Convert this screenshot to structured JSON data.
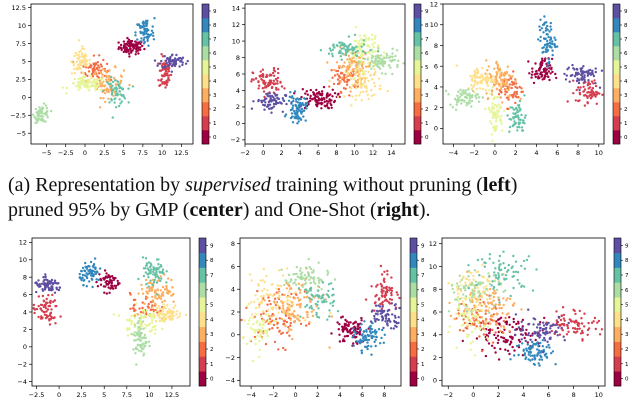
{
  "caption": {
    "p1": "(a) Representation by ",
    "p2": "supervised",
    "p3": " training without pruning (",
    "p4": "left",
    "p5": ")",
    "p6": "pruned 95% by GMP (",
    "p7": "center",
    "p8": ") and One-Shot (",
    "p9": "right",
    "p10": ")."
  },
  "colorbar": {
    "labels": [
      "0",
      "1",
      "2",
      "3",
      "4",
      "5",
      "6",
      "7",
      "8",
      "9"
    ],
    "colors": [
      "#9e0142",
      "#d53e4f",
      "#f46d43",
      "#fdae61",
      "#fee08b",
      "#e6f598",
      "#abdda4",
      "#66c2a5",
      "#3288bd",
      "#5e4fa2"
    ]
  },
  "chart_data": [
    {
      "type": "scatter",
      "title": "",
      "xlim": [
        -7,
        14
      ],
      "ylim": [
        -6.5,
        13
      ],
      "xticks": [
        -5,
        -2.5,
        0,
        2.5,
        5,
        7.5,
        10,
        12.5
      ],
      "yticks": [
        -5,
        -2.5,
        0,
        2.5,
        5,
        7.5,
        10,
        12.5
      ],
      "clusters": [
        {
          "label": 0,
          "x": 6.0,
          "y": 7.0,
          "sx": 0.8,
          "sy": 0.5,
          "n": 90
        },
        {
          "label": 1,
          "x": 10.4,
          "y": 3.4,
          "sx": 0.4,
          "sy": 1.2,
          "n": 70
        },
        {
          "label": 2,
          "x": 1.2,
          "y": 4.0,
          "sx": 0.8,
          "sy": 0.8,
          "n": 60
        },
        {
          "label": 3,
          "x": 3.0,
          "y": 2.0,
          "sx": 1.0,
          "sy": 1.0,
          "n": 80
        },
        {
          "label": 4,
          "x": -0.5,
          "y": 5.0,
          "sx": 0.6,
          "sy": 0.9,
          "n": 70
        },
        {
          "label": 5,
          "x": 0.3,
          "y": 1.8,
          "sx": 1.2,
          "sy": 0.5,
          "n": 80
        },
        {
          "label": 6,
          "x": -5.6,
          "y": -2.3,
          "sx": 0.5,
          "sy": 0.6,
          "n": 60
        },
        {
          "label": 7,
          "x": 4.0,
          "y": 0.8,
          "sx": 0.7,
          "sy": 0.9,
          "n": 60
        },
        {
          "label": 8,
          "x": 7.8,
          "y": 9.0,
          "sx": 0.6,
          "sy": 1.0,
          "n": 70
        },
        {
          "label": 9,
          "x": 11.4,
          "y": 5.0,
          "sx": 0.8,
          "sy": 0.5,
          "n": 70
        }
      ]
    },
    {
      "type": "scatter",
      "title": "",
      "xlim": [
        -2,
        15.5
      ],
      "ylim": [
        -2.5,
        14.5
      ],
      "xticks": [
        -2,
        0,
        2,
        4,
        6,
        8,
        10,
        12,
        14
      ],
      "yticks": [
        -2,
        0,
        2,
        4,
        6,
        8,
        10,
        12,
        14
      ],
      "clusters": [
        {
          "label": 0,
          "x": 6.0,
          "y": 3.0,
          "sx": 1.0,
          "sy": 0.6,
          "n": 100
        },
        {
          "label": 1,
          "x": 0.5,
          "y": 5.0,
          "sx": 0.8,
          "sy": 0.8,
          "n": 80
        },
        {
          "label": 2,
          "x": 9.0,
          "y": 5.5,
          "sx": 0.8,
          "sy": 0.8,
          "n": 60
        },
        {
          "label": 3,
          "x": 10.0,
          "y": 7.0,
          "sx": 1.0,
          "sy": 1.0,
          "n": 100
        },
        {
          "label": 4,
          "x": 11.0,
          "y": 5.0,
          "sx": 1.0,
          "sy": 1.0,
          "n": 80
        },
        {
          "label": 5,
          "x": 11.0,
          "y": 9.0,
          "sx": 0.8,
          "sy": 1.2,
          "n": 80
        },
        {
          "label": 6,
          "x": 13.0,
          "y": 7.5,
          "sx": 1.0,
          "sy": 0.6,
          "n": 80
        },
        {
          "label": 7,
          "x": 9.0,
          "y": 9.0,
          "sx": 1.2,
          "sy": 0.6,
          "n": 70
        },
        {
          "label": 8,
          "x": 3.7,
          "y": 1.8,
          "sx": 0.5,
          "sy": 0.8,
          "n": 80
        },
        {
          "label": 9,
          "x": 0.8,
          "y": 2.7,
          "sx": 0.8,
          "sy": 0.6,
          "n": 70
        }
      ]
    },
    {
      "type": "scatter",
      "title": "",
      "xlim": [
        -5,
        10.5
      ],
      "ylim": [
        -1.5,
        12
      ],
      "xticks": [
        -4,
        -2,
        0,
        2,
        4,
        6,
        8,
        10
      ],
      "yticks": [
        0,
        2,
        4,
        6,
        8,
        10,
        12
      ],
      "clusters": [
        {
          "label": 0,
          "x": 4.5,
          "y": 5.5,
          "sx": 0.5,
          "sy": 0.6,
          "n": 80
        },
        {
          "label": 1,
          "x": 9.0,
          "y": 3.5,
          "sx": 0.6,
          "sy": 0.6,
          "n": 60
        },
        {
          "label": 2,
          "x": 1.5,
          "y": 3.8,
          "sx": 0.6,
          "sy": 0.8,
          "n": 60
        },
        {
          "label": 3,
          "x": 0.5,
          "y": 4.8,
          "sx": 0.7,
          "sy": 0.9,
          "n": 90
        },
        {
          "label": 4,
          "x": -1.3,
          "y": 4.8,
          "sx": 0.7,
          "sy": 0.6,
          "n": 70
        },
        {
          "label": 5,
          "x": 0.0,
          "y": 1.5,
          "sx": 0.4,
          "sy": 1.0,
          "n": 70
        },
        {
          "label": 6,
          "x": -3.0,
          "y": 3.0,
          "sx": 0.7,
          "sy": 0.4,
          "n": 60
        },
        {
          "label": 7,
          "x": 2.2,
          "y": 1.0,
          "sx": 0.4,
          "sy": 0.8,
          "n": 60
        },
        {
          "label": 8,
          "x": 5.0,
          "y": 8.5,
          "sx": 0.4,
          "sy": 1.0,
          "n": 70
        },
        {
          "label": 9,
          "x": 8.3,
          "y": 5.2,
          "sx": 0.8,
          "sy": 0.5,
          "n": 70
        }
      ]
    },
    {
      "type": "scatter",
      "title": "",
      "xlim": [
        -3,
        14.5
      ],
      "ylim": [
        -4.5,
        12.5
      ],
      "xticks": [
        -2.5,
        0.0,
        2.5,
        5.0,
        7.5,
        10.0,
        12.5
      ],
      "yticks": [
        -4,
        -2,
        0,
        2,
        4,
        6,
        8,
        10,
        12
      ],
      "clusters": [
        {
          "label": 0,
          "x": 5.5,
          "y": 7.5,
          "sx": 0.6,
          "sy": 0.6,
          "n": 60
        },
        {
          "label": 1,
          "x": -1.5,
          "y": 4.2,
          "sx": 0.7,
          "sy": 0.9,
          "n": 70
        },
        {
          "label": 2,
          "x": 9.5,
          "y": 4.5,
          "sx": 0.8,
          "sy": 0.8,
          "n": 50
        },
        {
          "label": 3,
          "x": 11.0,
          "y": 6.5,
          "sx": 1.0,
          "sy": 0.8,
          "n": 80
        },
        {
          "label": 4,
          "x": 12.0,
          "y": 3.8,
          "sx": 0.8,
          "sy": 0.5,
          "n": 70
        },
        {
          "label": 5,
          "x": 9.0,
          "y": 3.0,
          "sx": 1.0,
          "sy": 0.8,
          "n": 80
        },
        {
          "label": 6,
          "x": 9.0,
          "y": 0.8,
          "sx": 0.4,
          "sy": 1.2,
          "n": 70
        },
        {
          "label": 7,
          "x": 10.5,
          "y": 8.5,
          "sx": 0.6,
          "sy": 0.8,
          "n": 70
        },
        {
          "label": 8,
          "x": 3.5,
          "y": 8.5,
          "sx": 0.6,
          "sy": 0.6,
          "n": 70
        },
        {
          "label": 9,
          "x": -1.2,
          "y": 7.0,
          "sx": 0.8,
          "sy": 0.4,
          "n": 70
        }
      ]
    },
    {
      "type": "scatter",
      "title": "",
      "xlim": [
        -5,
        9.5
      ],
      "ylim": [
        -4.5,
        8.5
      ],
      "xticks": [
        -4,
        -2,
        0,
        2,
        4,
        6,
        8
      ],
      "yticks": [
        -4,
        -2,
        0,
        2,
        4,
        6,
        8
      ],
      "clusters": [
        {
          "label": 0,
          "x": 5.0,
          "y": 0.3,
          "sx": 0.7,
          "sy": 0.6,
          "n": 90
        },
        {
          "label": 1,
          "x": 8.0,
          "y": 4.0,
          "sx": 0.6,
          "sy": 0.8,
          "n": 70
        },
        {
          "label": 2,
          "x": -1.5,
          "y": 1.5,
          "sx": 1.2,
          "sy": 1.2,
          "n": 100
        },
        {
          "label": 3,
          "x": 0.0,
          "y": 2.5,
          "sx": 1.2,
          "sy": 1.2,
          "n": 100
        },
        {
          "label": 4,
          "x": -2.0,
          "y": 3.0,
          "sx": 1.2,
          "sy": 1.2,
          "n": 80
        },
        {
          "label": 5,
          "x": -3.5,
          "y": 0.5,
          "sx": 0.8,
          "sy": 1.0,
          "n": 60
        },
        {
          "label": 6,
          "x": 1.0,
          "y": 5.0,
          "sx": 1.0,
          "sy": 0.6,
          "n": 70
        },
        {
          "label": 7,
          "x": 2.0,
          "y": 3.0,
          "sx": 0.8,
          "sy": 0.8,
          "n": 60
        },
        {
          "label": 8,
          "x": 6.5,
          "y": -0.3,
          "sx": 0.6,
          "sy": 0.6,
          "n": 80
        },
        {
          "label": 9,
          "x": 8.2,
          "y": 1.7,
          "sx": 0.8,
          "sy": 0.5,
          "n": 70
        }
      ]
    },
    {
      "type": "scatter",
      "title": "",
      "xlim": [
        -2.5,
        10.5
      ],
      "ylim": [
        -0.5,
        12.5
      ],
      "xticks": [
        -2,
        0,
        2,
        4,
        6,
        8,
        10
      ],
      "yticks": [
        0,
        2,
        4,
        6,
        8,
        10,
        12
      ],
      "clusters": [
        {
          "label": 0,
          "x": 3.0,
          "y": 4.0,
          "sx": 1.5,
          "sy": 0.8,
          "n": 110
        },
        {
          "label": 1,
          "x": 8.0,
          "y": 5.0,
          "sx": 1.0,
          "sy": 0.6,
          "n": 80
        },
        {
          "label": 2,
          "x": 0.5,
          "y": 5.5,
          "sx": 1.0,
          "sy": 1.0,
          "n": 70
        },
        {
          "label": 3,
          "x": 1.0,
          "y": 6.5,
          "sx": 1.2,
          "sy": 1.0,
          "n": 90
        },
        {
          "label": 4,
          "x": 0.0,
          "y": 8.0,
          "sx": 1.0,
          "sy": 1.0,
          "n": 80
        },
        {
          "label": 5,
          "x": -0.5,
          "y": 5.0,
          "sx": 0.8,
          "sy": 1.2,
          "n": 70
        },
        {
          "label": 6,
          "x": 0.0,
          "y": 8.0,
          "sx": 1.2,
          "sy": 0.8,
          "n": 70
        },
        {
          "label": 7,
          "x": 2.5,
          "y": 9.5,
          "sx": 1.2,
          "sy": 0.8,
          "n": 70
        },
        {
          "label": 8,
          "x": 5.0,
          "y": 2.5,
          "sx": 0.8,
          "sy": 0.6,
          "n": 80
        },
        {
          "label": 9,
          "x": 5.5,
          "y": 4.5,
          "sx": 1.0,
          "sy": 0.6,
          "n": 80
        }
      ]
    }
  ]
}
